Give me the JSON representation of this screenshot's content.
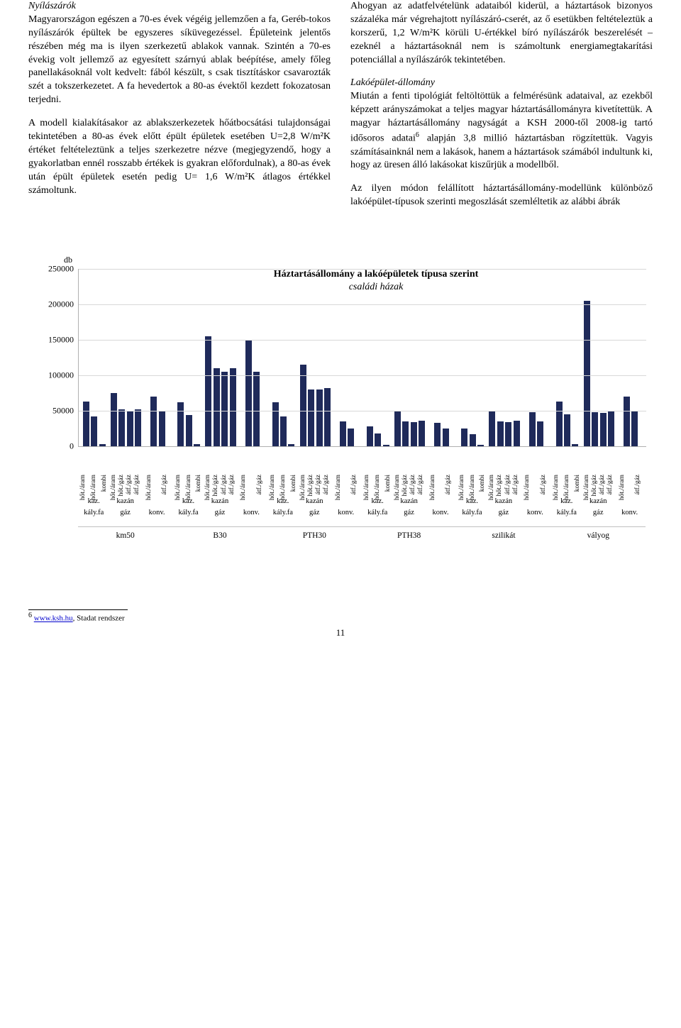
{
  "left_col": {
    "heading": "Nyílászárók",
    "p1": "Magyarországon egészen a 70-es évek végéig jellemzően a fa, Geréb-tokos nyílászárók épültek be egyszeres síküvegezéssel. Épületeink jelentős részében még ma is ilyen szerkezetű ablakok vannak. Szintén a 70-es évekig volt jellemző az egyesített szárnyú ablak beépítése, amely főleg panellakásoknál volt kedvelt: fából készült, s csak tisztításkor csavarozták szét a tokszerkezetet. A fa hevedertok a 80-as évektől kezdett fokozatosan terjedni.",
    "p2": "A modell kialakításakor az ablakszerkezetek hőátbocsátási tulajdonságai tekintetében a 80-as évek előtt épült épületek esetében U=2,8 W/m²K értéket feltételeztünk a teljes szerkezetre nézve (megjegyzendő, hogy a gyakorlatban ennél rosszabb értékek is gyakran előfordulnak), a 80-as évek után épült épületek esetén pedig U= 1,6 W/m²K átlagos értékkel számoltunk."
  },
  "right_col": {
    "p1": "Ahogyan az adatfelvételünk adataiból kiderül, a háztartások bizonyos százaléka már végrehajtott nyílászáró-cserét, az ő esetükben feltételeztük a korszerű, 1,2 W/m²K körüli U-értékkel bíró nyílászárók beszerelését – ezeknél a háztartásoknál nem is számoltunk energiamegtakarítási potenciállal a nyílászárók tekintetében.",
    "heading": "Lakóépület-állomány",
    "p2_a": "Miután a fenti tipológiát feltöltöttük a felmérésünk adataival, az ezekből képzett arányszámokat a teljes magyar háztartásállományra kivetítettük. A magyar háztartásállomány nagyságát a KSH 2000-től 2008-ig tartó idősoros adatai",
    "p2_sup": "6",
    "p2_b": " alapján 3,8 millió háztartásban rögzítettük. Vagyis számításainknál nem a lakások, hanem a háztartások számából indultunk ki, hogy az üresen álló lakásokat kiszűrjük a modellből.",
    "p3": "Az ilyen módon felállított háztartásállomány-modellünk különböző lakóépület-típusok szerinti megoszlását szemléltetik az alábbi ábrák"
  },
  "chart": {
    "title": "Háztartásállomány a lakóépületek típusa szerint",
    "subtitle": "családi házak",
    "y_unit": "db",
    "y_max": 250000,
    "y_ticks": [
      0,
      50000,
      100000,
      150000,
      200000,
      250000
    ],
    "bar_color": "#1f2a5a",
    "heating_labels": [
      "hőt./áram",
      "hőt./áram",
      "kombi",
      "hőt./áram",
      "hőt./gáz",
      "átf./gáz",
      "átf./gáz",
      "hőt./áram",
      "átf./gáz"
    ],
    "fuel_labels_short": [
      "kaz.",
      "kazán",
      ""
    ],
    "fuel_sub": [
      "kály.fa",
      "gáz",
      "konv."
    ],
    "building_labels": [
      "km50",
      "B30",
      "PTH30",
      "PTH38",
      "szilikát",
      "vályog"
    ],
    "values": [
      [
        [
          63000,
          42000,
          3000
        ],
        [
          75000,
          52000,
          50000,
          52000
        ],
        [
          70000,
          50000
        ]
      ],
      [
        [
          62000,
          44000,
          3000
        ],
        [
          155000,
          110000,
          105000,
          110000
        ],
        [
          150000,
          105000
        ]
      ],
      [
        [
          62000,
          42000,
          3000
        ],
        [
          115000,
          80000,
          80000,
          82000
        ],
        [
          35000,
          25000
        ]
      ],
      [
        [
          28000,
          18000,
          2000
        ],
        [
          50000,
          35000,
          34000,
          36000
        ],
        [
          33000,
          25000
        ]
      ],
      [
        [
          25000,
          17000,
          2000
        ],
        [
          50000,
          35000,
          34000,
          36000
        ],
        [
          48000,
          35000
        ]
      ],
      [
        [
          63000,
          45000,
          3000
        ],
        [
          205000,
          48000,
          47000,
          50000
        ],
        [
          70000,
          50000
        ]
      ]
    ]
  },
  "footnote": {
    "num": "6",
    "link_text": "www.ksh.hu",
    "rest": ", Stadat rendszer"
  },
  "page_number": "11"
}
